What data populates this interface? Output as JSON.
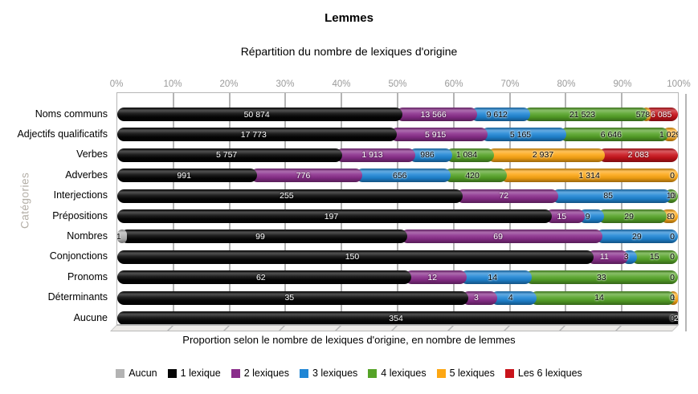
{
  "chart_data": {
    "type": "bar",
    "orientation": "horizontal",
    "stacked": "percent",
    "title": "Lemmes",
    "subtitle": "Répartition du nombre de lexiques d'origine",
    "xlabel": "Proportion selon le nombre de lexiques d'origine, en nombre de lemmes",
    "ylabel": "Catégories",
    "x_ticks": [
      "0%",
      "10%",
      "20%",
      "30%",
      "40%",
      "50%",
      "60%",
      "70%",
      "80%",
      "90%",
      "100%"
    ],
    "xlim": [
      0,
      100
    ],
    "grid": true,
    "legend_position": "bottom",
    "categories": [
      "Noms communs",
      "Adjectifs qualificatifs",
      "Verbes",
      "Adverbes",
      "Interjections",
      "Prépositions",
      "Nombres",
      "Conjonctions",
      "Pronoms",
      "Déterminants",
      "Aucune"
    ],
    "series": [
      {
        "name": "Aucun",
        "color": "#b3b3b3",
        "label_style": "dark",
        "values": [
          0,
          0,
          0,
          0,
          0,
          0,
          1,
          0,
          0,
          0,
          0
        ]
      },
      {
        "name": "1 lexique",
        "color": "#050505",
        "label_style": "light",
        "values": [
          50874,
          17773,
          5757,
          991,
          255,
          197,
          99,
          150,
          62,
          35,
          354
        ]
      },
      {
        "name": "2 lexiques",
        "color": "#8a2d8b",
        "label_style": "light",
        "values": [
          13566,
          5915,
          1913,
          776,
          72,
          15,
          69,
          11,
          12,
          3,
          2
        ]
      },
      {
        "name": "3 lexiques",
        "color": "#1f86d5",
        "label_style": "dark",
        "values": [
          9612,
          5165,
          986,
          656,
          85,
          9,
          29,
          3,
          14,
          4,
          0
        ]
      },
      {
        "name": "4 lexiques",
        "color": "#55a327",
        "label_style": "dark",
        "values": [
          21523,
          6646,
          1084,
          420,
          10,
          29,
          0,
          15,
          33,
          14,
          0
        ]
      },
      {
        "name": "5 lexiques",
        "color": "#fda713",
        "label_style": "dark",
        "values": [
          578,
          1029,
          2937,
          1314,
          0,
          8,
          0,
          0,
          0,
          1,
          0
        ]
      },
      {
        "name": "Les 6 lexiques",
        "color": "#c9131b",
        "label_style": "light",
        "values": [
          6085,
          0,
          2083,
          0,
          0,
          0,
          0,
          0,
          0,
          0,
          0
        ]
      }
    ],
    "trailing_zero_rows": [
      3,
      4,
      5,
      6,
      7,
      8,
      9,
      10
    ],
    "trailing_zero_label": "0"
  }
}
